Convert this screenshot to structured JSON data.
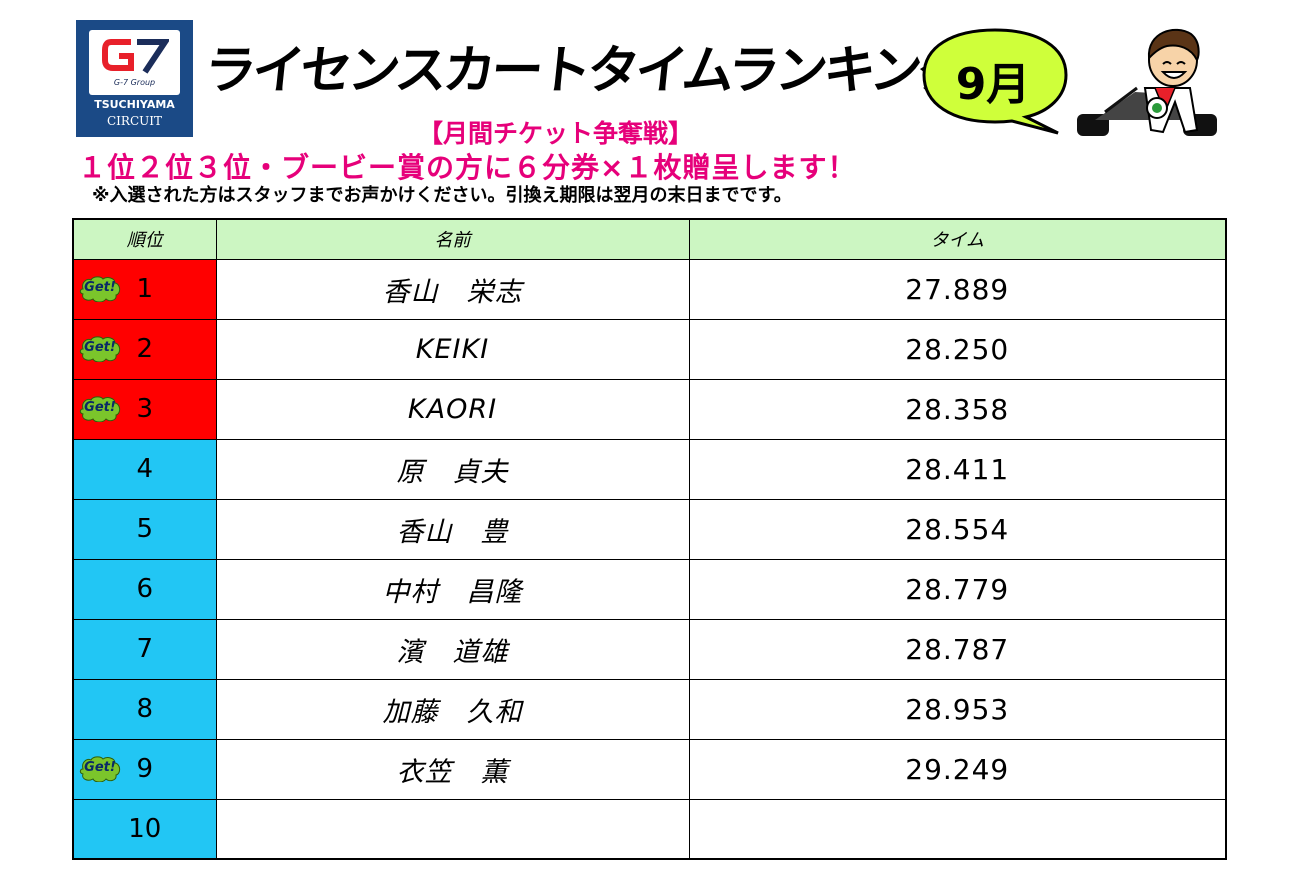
{
  "logo": {
    "group": "G-7 Group",
    "circuit_line1": "TSUCHIYAMA",
    "circuit_line2": "CIRCUIT",
    "colors": {
      "navy": "#1b4a86",
      "red": "#e8202a"
    }
  },
  "title": "ライセンスカートタイムランキング",
  "month": "9月",
  "subtitle": "【月間チケット争奪戦】",
  "prize_line": "１位２位３位・ブービー賞の方に６分券×１枚贈呈します！",
  "note": "※入選された方はスタッフまでお声かけください。引換え期限は翌月の末日までです。",
  "table": {
    "headers": {
      "rank": "順位",
      "name": "名前",
      "time": "タイム"
    },
    "rows": [
      {
        "rank": "1",
        "name": "香山　栄志",
        "time": "27.889",
        "get": true,
        "prize": true
      },
      {
        "rank": "2",
        "name": "KEIKI",
        "time": "28.250",
        "get": true,
        "prize": true
      },
      {
        "rank": "3",
        "name": "KAORI",
        "time": "28.358",
        "get": true,
        "prize": true
      },
      {
        "rank": "4",
        "name": "原　貞夫",
        "time": "28.411",
        "get": false,
        "prize": false
      },
      {
        "rank": "5",
        "name": "香山　豊",
        "time": "28.554",
        "get": false,
        "prize": false
      },
      {
        "rank": "6",
        "name": "中村　昌隆",
        "time": "28.779",
        "get": false,
        "prize": false
      },
      {
        "rank": "7",
        "name": "濱　道雄",
        "time": "28.787",
        "get": false,
        "prize": false
      },
      {
        "rank": "8",
        "name": "加藤　久和",
        "time": "28.953",
        "get": false,
        "prize": false
      },
      {
        "rank": "9",
        "name": "衣笠　薫",
        "time": "29.249",
        "get": true,
        "prize": false
      },
      {
        "rank": "10",
        "name": "",
        "time": "",
        "get": false,
        "prize": false
      }
    ],
    "badge_label": "Get!",
    "colors": {
      "header": "#ccf6c2",
      "top3": "#ff0000",
      "rank": "#22c6f4",
      "badge": "#7bc52b"
    }
  },
  "colors": {
    "accent": "#e6007a",
    "bubble": "#cfff3a"
  }
}
